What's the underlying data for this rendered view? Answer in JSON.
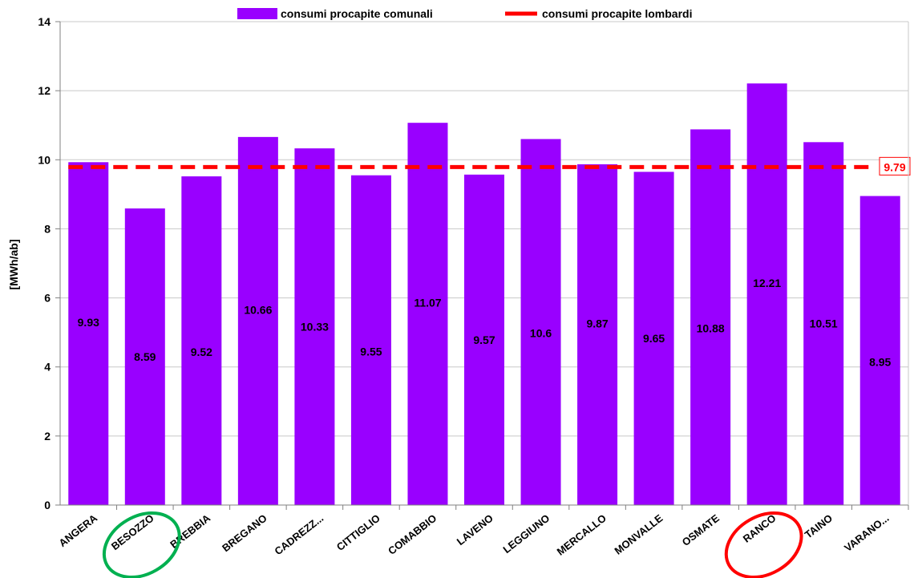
{
  "chart_data": {
    "type": "bar",
    "categories": [
      "ANGERA",
      "BESOZZO",
      "BREBBIA",
      "BREGANO",
      "CADREZZ...",
      "CITTIGLIO",
      "COMABBIO",
      "LAVENO",
      "LEGGIUNO",
      "MERCALLO",
      "MONVALLE",
      "OSMATE",
      "RANCO",
      "TAINO",
      "VARANO..."
    ],
    "series": [
      {
        "name": "consumi procapite comunali",
        "values": [
          9.93,
          8.59,
          9.52,
          10.66,
          10.33,
          9.55,
          11.07,
          9.57,
          10.6,
          9.87,
          9.65,
          10.88,
          12.21,
          10.51,
          8.95
        ],
        "value_labels": [
          "9.93",
          "8.59",
          "9.52",
          "10.66",
          "10.33",
          "9.55",
          "11.07",
          "9.57",
          "10.6",
          "9.87",
          "9.65",
          "10.88",
          "12.21",
          "10.51",
          "8.95"
        ],
        "color": "#9900ff"
      }
    ],
    "reference_line": {
      "name": "consumi procapite lombardi",
      "value": 9.79,
      "label": "9.79",
      "color": "#ff0000",
      "style": "dashed"
    },
    "title": "",
    "xlabel": "",
    "ylabel": "[MWh/ab]",
    "ylim": [
      0,
      14
    ],
    "yticks": [
      "0",
      "2",
      "4",
      "6",
      "8",
      "10",
      "12",
      "14"
    ],
    "grid": true,
    "legend_position": "top",
    "highlight_circles": [
      {
        "category": "BESOZZO",
        "color": "#00b050"
      },
      {
        "category": "RANCO",
        "color": "#ff0000"
      }
    ]
  }
}
